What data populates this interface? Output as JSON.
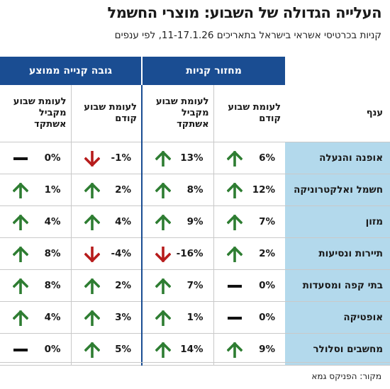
{
  "title": "העלייה הגדולה של השבוע: מוצרי החשמל",
  "subtitle": "קניות בכרטיסי אשראי בישראל בתאריכים 11-17.1.26, לפי ענפים",
  "group_headers": {
    "turnover": "מחזור קניות",
    "avg_purchase": "גובה קנייה ממוצע"
  },
  "column_headers": {
    "category": "ענף",
    "turnover_prev_week": "לעומת שבוע קודם",
    "turnover_last_year": "לעומת שבוע מקביל אשתקד",
    "avg_prev_week": "לעומת שבוע קודם",
    "avg_last_year": "לעומת שבוע מקביל אשתקד"
  },
  "colors": {
    "up": "#2e7d32",
    "down": "#b71c1c",
    "flat": "#111111",
    "header_bg": "#1a4d92",
    "category_bg": "#b3d9ec"
  },
  "chart_data": {
    "type": "table",
    "title": "העלייה הגדולה של השבוע: מוצרי החשמל",
    "subtitle": "קניות בכרטיסי אשראי בישראל בתאריכים 11-17.1.26, לפי ענפים",
    "rows": [
      {
        "category": "אופנה והנעלה",
        "turnover_prev_week": "6%",
        "turnover_last_year": "13%",
        "avg_prev_week": "-1%",
        "avg_last_year": "0%"
      },
      {
        "category": "חשמל ואלקטרוניקה",
        "turnover_prev_week": "12%",
        "turnover_last_year": "8%",
        "avg_prev_week": "2%",
        "avg_last_year": "1%"
      },
      {
        "category": "מזון",
        "turnover_prev_week": "7%",
        "turnover_last_year": "9%",
        "avg_prev_week": "4%",
        "avg_last_year": "4%"
      },
      {
        "category": "תיירות ונסיעות",
        "turnover_prev_week": "2%",
        "turnover_last_year": "-16%",
        "avg_prev_week": "-4%",
        "avg_last_year": "8%"
      },
      {
        "category": "בתי קפה ומסעדות",
        "turnover_prev_week": "0%",
        "turnover_last_year": "7%",
        "avg_prev_week": "2%",
        "avg_last_year": "8%"
      },
      {
        "category": "אופטיקה",
        "turnover_prev_week": "0%",
        "turnover_last_year": "1%",
        "avg_prev_week": "3%",
        "avg_last_year": "4%"
      },
      {
        "category": "מחשבים וסלולר",
        "turnover_prev_week": "9%",
        "turnover_last_year": "14%",
        "avg_prev_week": "5%",
        "avg_last_year": "0%"
      }
    ]
  },
  "source": "מקור: הפניקס גמא"
}
